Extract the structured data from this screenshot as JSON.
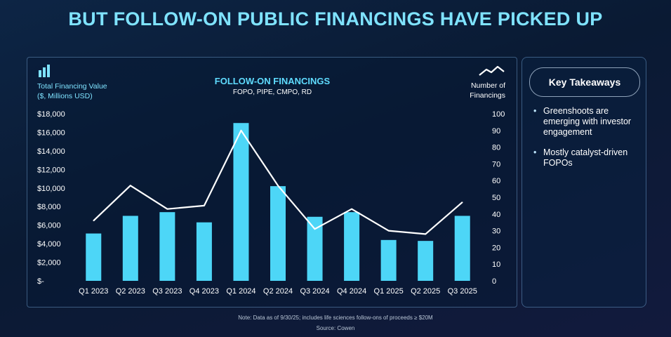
{
  "title": "BUT FOLLOW-ON PUBLIC FINANCINGS HAVE PICKED UP",
  "chart": {
    "icon_left": "bar-chart-icon",
    "icon_right": "line-chart-icon",
    "left_axis_label_1": "Total Financing Value",
    "left_axis_label_2": "($, Millions USD)",
    "right_axis_label_1": "Number of",
    "right_axis_label_2": "Financings",
    "chart_title": "FOLLOW-ON FINANCINGS",
    "chart_subtitle": "FOPO, PIPE, CMPO, RD"
  },
  "chart_data": {
    "type": "bar",
    "title": "FOLLOW-ON FINANCINGS",
    "subtitle": "FOPO, PIPE, CMPO, RD",
    "categories": [
      "Q1 2023",
      "Q2 2023",
      "Q3 2023",
      "Q4 2023",
      "Q1 2024",
      "Q2 2024",
      "Q3 2024",
      "Q4 2024",
      "Q1 2025",
      "Q2 2025",
      "Q3 2025"
    ],
    "series": [
      {
        "name": "Total Financing Value",
        "type": "bar",
        "axis": "left",
        "color": "#4dd6f7",
        "values": [
          5100,
          7000,
          7400,
          6300,
          17000,
          10200,
          6900,
          7400,
          4400,
          4300,
          7000
        ]
      },
      {
        "name": "Number of Financings",
        "type": "line",
        "axis": "right",
        "color": "#ffffff",
        "values": [
          36,
          57,
          43,
          45,
          90,
          57,
          31,
          43,
          30,
          28,
          47
        ]
      }
    ],
    "ylabel_left": "Total Financing Value ($, Millions USD)",
    "ylabel_right": "Number of Financings",
    "ylim_left": [
      0,
      18000
    ],
    "ylim_right": [
      0,
      100
    ],
    "left_ticks": [
      "$-",
      "$2,000",
      "$4,000",
      "$6,000",
      "$8,000",
      "$10,000",
      "$12,000",
      "$14,000",
      "$16,000",
      "$18,000"
    ],
    "right_ticks": [
      "0",
      "10",
      "20",
      "30",
      "40",
      "50",
      "60",
      "70",
      "80",
      "90",
      "100"
    ],
    "grid": false
  },
  "takeaways": {
    "heading": "Key Takeaways",
    "items": [
      "Greenshoots are emerging with investor engagement",
      "Mostly catalyst-driven FOPOs"
    ]
  },
  "note": "Note: Data as of 9/30/25; includes life sciences follow-ons of proceeds ≥ $20M",
  "source": "Source: Cowen"
}
